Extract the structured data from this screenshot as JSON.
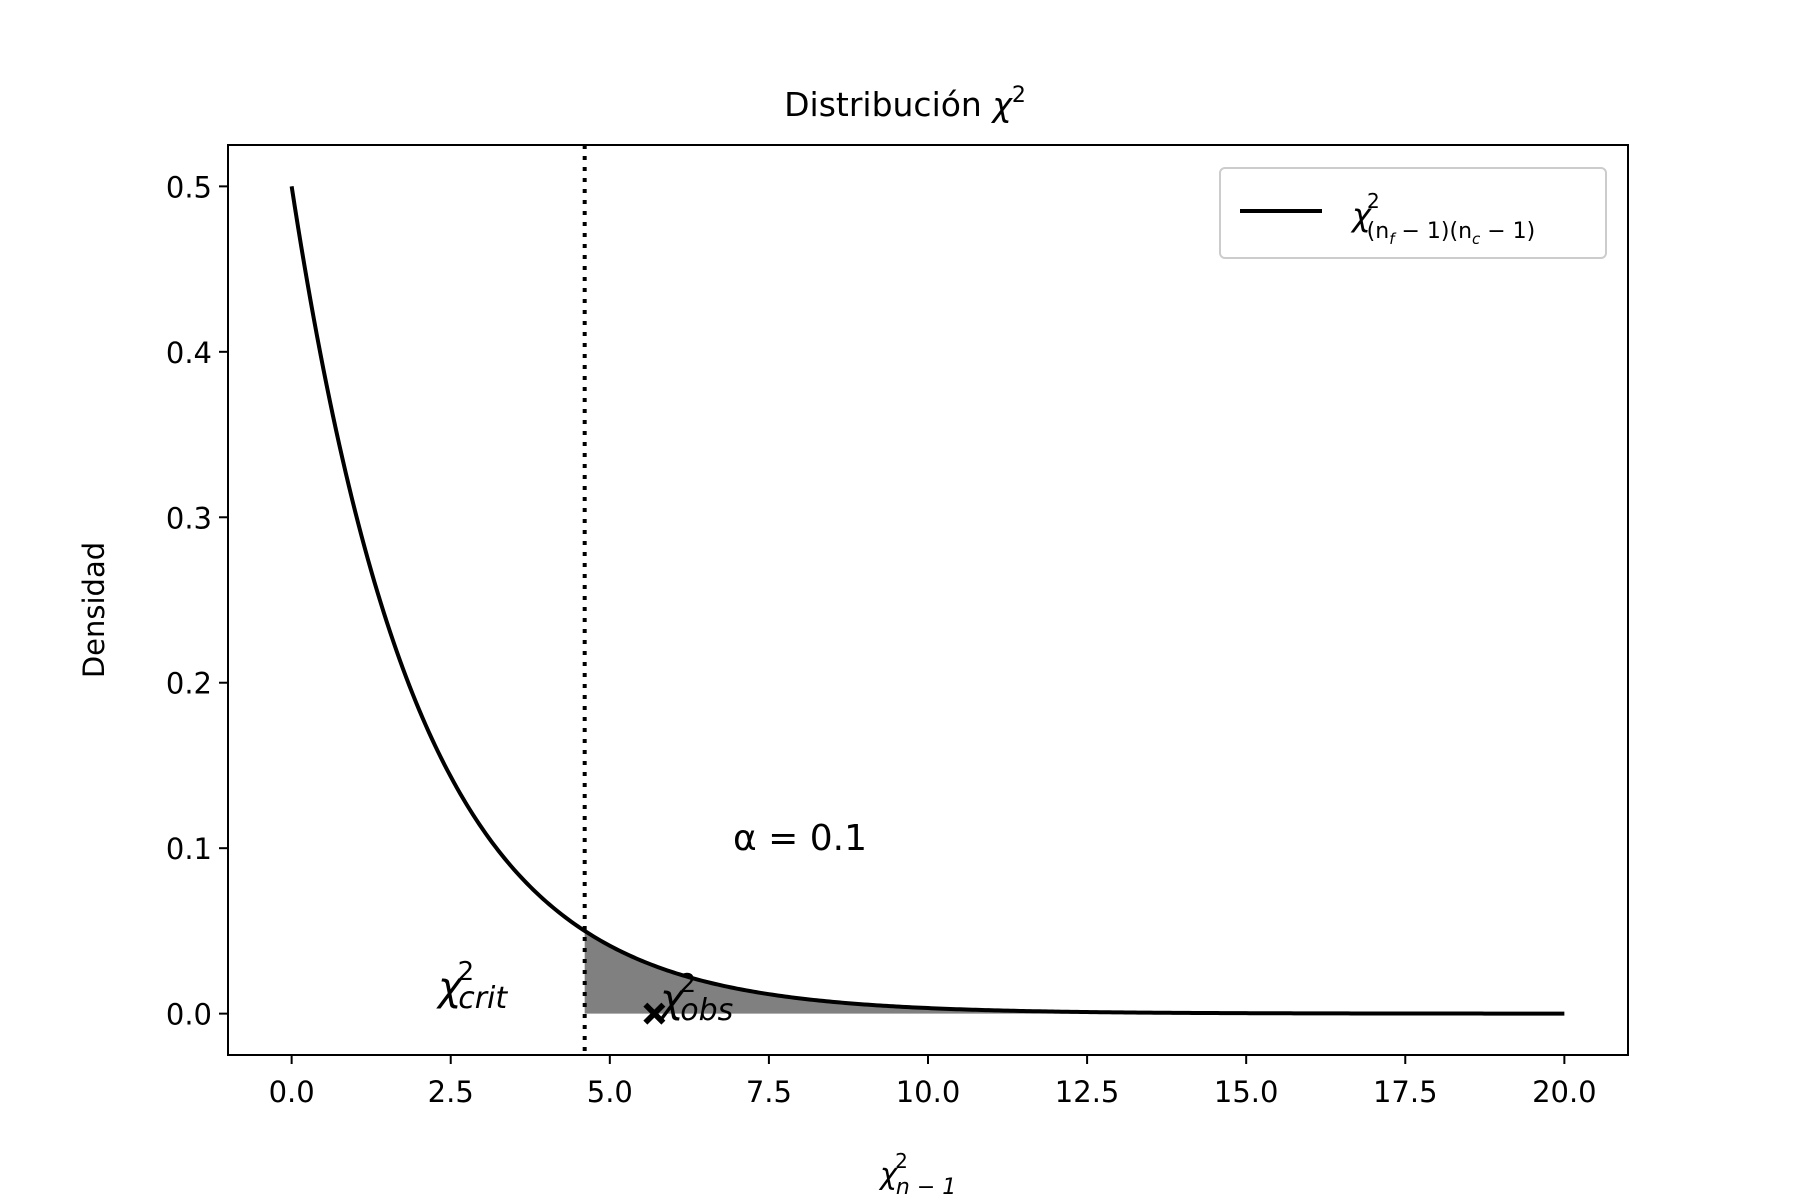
{
  "chart_data": {
    "type": "line",
    "title": "Distribución χ²",
    "title_parts": {
      "text": "Distribución ",
      "symbol": "χ",
      "sup": "2"
    },
    "xlabel": {
      "symbol": "χ",
      "sup": "2",
      "sub": "n − 1"
    },
    "ylabel": "Densidad",
    "xlim": [
      -1.0,
      21.0
    ],
    "ylim": [
      -0.025,
      0.525
    ],
    "xticks": [
      0.0,
      2.5,
      5.0,
      7.5,
      10.0,
      12.5,
      15.0,
      17.5,
      20.0
    ],
    "xtick_labels": [
      "0.0",
      "2.5",
      "5.0",
      "7.5",
      "10.0",
      "12.5",
      "15.0",
      "17.5",
      "20.0"
    ],
    "yticks": [
      0.0,
      0.1,
      0.2,
      0.3,
      0.4,
      0.5
    ],
    "ytick_labels": [
      "0.0",
      "0.1",
      "0.2",
      "0.3",
      "0.4",
      "0.5"
    ],
    "grid": false,
    "legend_position": "top-right",
    "series": [
      {
        "name": "χ²(nf−1)(nc−1)",
        "legend": {
          "symbol": "χ",
          "sup": "2",
          "sub": "(n",
          "sub_f": "f",
          "sub_mid": " − 1)(n",
          "sub_c": "c",
          "sub_end": " − 1)"
        },
        "distribution": "chi-square",
        "df": 2,
        "x_range": [
          0,
          20
        ],
        "color": "#000000"
      }
    ],
    "critical_value": 4.605,
    "critical_label": {
      "symbol": "χ",
      "sup": "2",
      "sub": "crit"
    },
    "observed_value": 5.7,
    "observed_label": {
      "symbol": "χ",
      "sup": "2",
      "sub": "obs"
    },
    "alpha_label": "α = 0.1",
    "shade_color": "#808080"
  }
}
